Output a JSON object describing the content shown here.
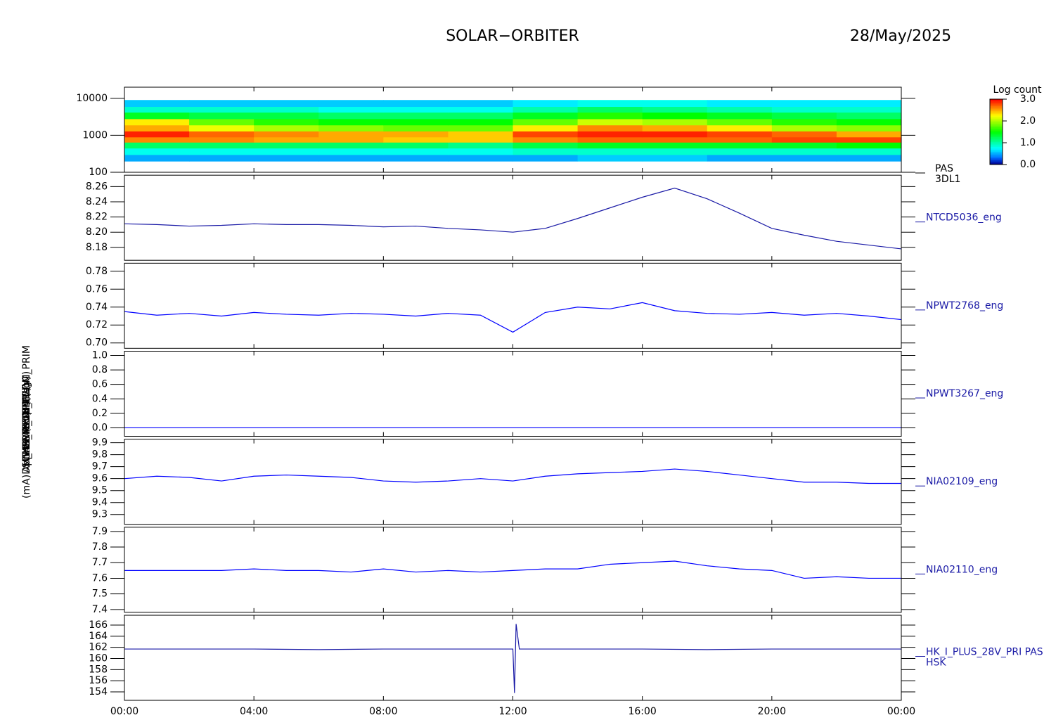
{
  "header": {
    "title": "SOLAR−ORBITER",
    "date": "28/May/2025"
  },
  "time_axis": {
    "xlim": [
      0,
      24
    ],
    "xticks": [
      {
        "value": 0,
        "label": "00:00"
      },
      {
        "value": 4,
        "label": "04:00"
      },
      {
        "value": 8,
        "label": "08:00"
      },
      {
        "value": 12,
        "label": "12:00"
      },
      {
        "value": 16,
        "label": "16:00"
      },
      {
        "value": 20,
        "label": "20:00"
      },
      {
        "value": 24,
        "label": "00:00"
      }
    ]
  },
  "chart_data": [
    {
      "type": "heatmap",
      "ylabel": "(eV)",
      "right_label": [
        "PAS",
        "3DL1"
      ],
      "log": true,
      "ylim": [
        100,
        20000
      ],
      "yticks": [
        100,
        1000,
        10000
      ],
      "x_bins": [
        0,
        2,
        4,
        6,
        8,
        10,
        12,
        14,
        16,
        18,
        20,
        22,
        24
      ],
      "y_bins": [
        200,
        300,
        450,
        650,
        900,
        1300,
        1900,
        2800,
        4200,
        6000,
        9000
      ],
      "values": [
        [
          0.5,
          0.5,
          0.5,
          0.5,
          0.5,
          0.5,
          0.5,
          0.6,
          0.6,
          0.5,
          0.5,
          0.5
        ],
        [
          0.8,
          0.8,
          0.8,
          0.8,
          0.8,
          0.8,
          0.9,
          0.9,
          0.9,
          0.9,
          0.9,
          0.9
        ],
        [
          1.2,
          1.2,
          1.2,
          1.2,
          1.2,
          1.1,
          1.3,
          1.4,
          1.4,
          1.4,
          1.4,
          1.5
        ],
        [
          2.6,
          2.6,
          2.5,
          2.5,
          2.4,
          2.4,
          2.6,
          2.7,
          2.7,
          2.7,
          2.8,
          2.8
        ],
        [
          2.9,
          2.7,
          2.6,
          2.5,
          2.5,
          2.4,
          2.8,
          2.9,
          2.9,
          2.8,
          2.7,
          2.5
        ],
        [
          2.5,
          2.2,
          2.0,
          1.9,
          1.8,
          1.8,
          2.3,
          2.6,
          2.5,
          2.3,
          2.0,
          1.9
        ],
        [
          2.3,
          1.8,
          1.6,
          1.5,
          1.5,
          1.5,
          1.8,
          2.1,
          2.0,
          1.8,
          1.6,
          1.5
        ],
        [
          1.4,
          1.3,
          1.3,
          1.2,
          1.2,
          1.2,
          1.4,
          1.6,
          1.5,
          1.4,
          1.3,
          1.2
        ],
        [
          0.9,
          0.9,
          0.9,
          0.8,
          0.8,
          0.8,
          1.0,
          1.2,
          1.1,
          1.0,
          0.9,
          0.9
        ],
        [
          0.6,
          0.6,
          0.6,
          0.6,
          0.6,
          0.6,
          0.7,
          0.8,
          0.8,
          0.7,
          0.7,
          0.7
        ]
      ],
      "colorbar": {
        "label": "Log count",
        "clim": [
          0,
          3
        ],
        "ticks": [
          {
            "value": 0,
            "label": "0.0"
          },
          {
            "value": 1,
            "label": "1.0"
          },
          {
            "value": 2,
            "label": "2.0"
          },
          {
            "value": 3,
            "label": "3.0"
          }
        ]
      }
    },
    {
      "type": "line",
      "ylabel": "Approx Temp (DegC)",
      "right_label": [
        "NTCD5036_eng"
      ],
      "color": "#1a1aa6",
      "ylim": [
        8.163,
        8.275
      ],
      "yticks": [
        8.18,
        {
          "value": 8.2,
          "label": "8.20"
        },
        8.22,
        8.24,
        8.26
      ],
      "x": [
        0,
        1,
        2,
        3,
        4,
        5,
        6,
        7,
        8,
        9,
        10,
        11,
        12,
        13,
        14,
        15,
        16,
        17,
        18,
        19,
        20,
        21,
        22,
        23,
        24
      ],
      "values": [
        8.211,
        8.21,
        8.208,
        8.209,
        8.211,
        8.21,
        8.21,
        8.209,
        8.207,
        8.208,
        8.205,
        8.203,
        8.2,
        8.205,
        8.218,
        8.232,
        8.246,
        8.258,
        8.244,
        8.225,
        8.205,
        8.196,
        8.188,
        8.183,
        8.178
      ]
    },
    {
      "type": "line",
      "ylabel": "SWA-EAS TEMP (V)",
      "right_label": [
        "NPWT2768_eng"
      ],
      "color": "#0000ff",
      "ylim": [
        0.694,
        0.789
      ],
      "yticks": [
        {
          "value": 0.7,
          "label": "0.70"
        },
        {
          "value": 0.72,
          "label": "0.72"
        },
        {
          "value": 0.74,
          "label": "0.74"
        },
        {
          "value": 0.76,
          "label": "0.76"
        },
        {
          "value": 0.78,
          "label": "0.78"
        }
      ],
      "x": [
        0,
        1,
        2,
        3,
        4,
        5,
        6,
        7,
        8,
        9,
        10,
        11,
        12,
        13,
        14,
        15,
        16,
        17,
        18,
        19,
        20,
        21,
        22,
        23,
        24
      ],
      "values": [
        0.735,
        0.731,
        0.733,
        0.73,
        0.734,
        0.732,
        0.731,
        0.733,
        0.732,
        0.73,
        0.733,
        0.731,
        0.712,
        0.734,
        0.74,
        0.738,
        0.745,
        0.736,
        0.733,
        0.732,
        0.734,
        0.731,
        0.733,
        0.73,
        0.726
      ]
    },
    {
      "type": "line",
      "ylabel": "RPW TEMP (V)",
      "right_label": [
        "NPWT3267_eng"
      ],
      "color": "#0000ff",
      "ylim": [
        -0.117,
        1.058
      ],
      "yticks": [
        {
          "value": 0,
          "label": "0.0"
        },
        0.2,
        0.4,
        0.6,
        0.8,
        {
          "value": 1,
          "label": "1.0"
        }
      ],
      "x": [
        0,
        1,
        2,
        3,
        4,
        5,
        6,
        7,
        8,
        9,
        10,
        11,
        12,
        13,
        14,
        15,
        16,
        17,
        18,
        19,
        20,
        21,
        22,
        23,
        24
      ],
      "values": [
        0,
        0,
        0,
        0,
        0,
        0,
        0,
        0,
        0,
        0,
        0,
        0,
        0,
        0,
        0,
        0,
        0,
        0,
        0,
        0,
        0,
        0,
        0,
        0,
        0
      ]
    },
    {
      "type": "line",
      "ylabel": "THERM_CH4 (V)",
      "right_label": [
        "NIA02109_eng"
      ],
      "color": "#0000ff",
      "ylim": [
        9.218,
        9.929
      ],
      "yticks": [
        9.3,
        9.4,
        9.5,
        9.6,
        9.7,
        9.8,
        9.9
      ],
      "x": [
        0,
        1,
        2,
        3,
        4,
        5,
        6,
        7,
        8,
        9,
        10,
        11,
        12,
        13,
        14,
        15,
        16,
        17,
        18,
        19,
        20,
        21,
        22,
        23,
        24
      ],
      "values": [
        9.6,
        9.62,
        9.61,
        9.58,
        9.62,
        9.63,
        9.62,
        9.61,
        9.58,
        9.57,
        9.58,
        9.6,
        9.58,
        9.62,
        9.64,
        9.65,
        9.66,
        9.68,
        9.66,
        9.63,
        9.6,
        9.57,
        9.57,
        9.56,
        9.56
      ]
    },
    {
      "type": "line",
      "ylabel": "THERM_CH5 (V)",
      "right_label": [
        "NIA02110_eng"
      ],
      "color": "#0000ff",
      "ylim": [
        7.382,
        7.927
      ],
      "yticks": [
        7.4,
        7.5,
        7.6,
        7.7,
        7.8,
        7.9
      ],
      "x": [
        0,
        1,
        2,
        3,
        4,
        5,
        6,
        7,
        8,
        9,
        10,
        11,
        12,
        13,
        14,
        15,
        16,
        17,
        18,
        19,
        20,
        21,
        22,
        23,
        24
      ],
      "values": [
        7.65,
        7.65,
        7.65,
        7.65,
        7.66,
        7.65,
        7.65,
        7.64,
        7.66,
        7.64,
        7.65,
        7.64,
        7.65,
        7.66,
        7.66,
        7.69,
        7.7,
        7.71,
        7.68,
        7.66,
        7.65,
        7.6,
        7.61,
        7.6,
        7.6
      ]
    },
    {
      "type": "line",
      "ylabel": "(mA)DM_HK_IMON_PCDM_PRIM",
      "right_label": [
        "HK_I_PLUS_28V_PRI PAS",
        "HSK"
      ],
      "color": "#1a1aa6",
      "ylim": [
        152.48,
        167.77
      ],
      "yticks": [
        154,
        156,
        158,
        160,
        162,
        164,
        166
      ],
      "x": [
        0,
        2,
        4,
        6,
        8,
        10,
        12,
        12.05,
        12.1,
        12.2,
        14,
        16,
        18,
        20,
        22,
        24
      ],
      "values": [
        161.7,
        161.7,
        161.7,
        161.6,
        161.7,
        161.7,
        161.7,
        153.8,
        166.2,
        161.7,
        161.7,
        161.7,
        161.6,
        161.7,
        161.7,
        161.7
      ]
    }
  ]
}
